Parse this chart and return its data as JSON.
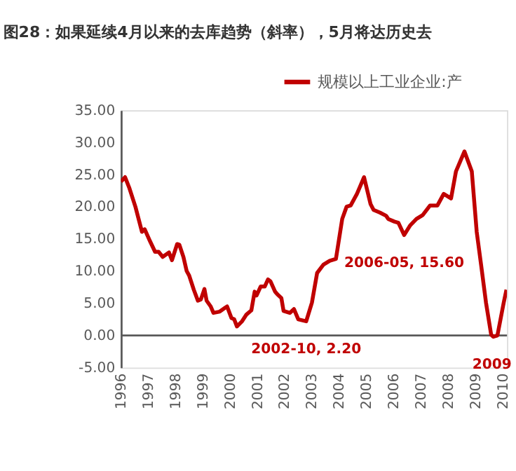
{
  "chart_data": {
    "type": "line",
    "title": "图28：如果延续4月以来的去库趋势（斜率），5月将达历史去",
    "x": [
      1996.0,
      1996.15,
      1996.3,
      1996.53,
      1996.77,
      1996.87,
      1997.07,
      1997.25,
      1997.38,
      1997.53,
      1997.76,
      1997.87,
      1998.06,
      1998.14,
      1998.29,
      1998.41,
      1998.5,
      1998.67,
      1998.82,
      1998.93,
      1999.06,
      1999.14,
      1999.29,
      1999.39,
      1999.62,
      1999.82,
      1999.89,
      2000.05,
      2000.15,
      2000.25,
      2000.44,
      2000.59,
      2000.78,
      2000.9,
      2000.97,
      2001.12,
      2001.27,
      2001.39,
      2001.48,
      2001.65,
      2001.73,
      2001.88,
      2001.96,
      2002.19,
      2002.34,
      2002.5,
      2002.79,
      2003.0,
      2003.19,
      2003.42,
      2003.65,
      2003.88,
      2004.11,
      2004.27,
      2004.42,
      2004.65,
      2004.91,
      2005.15,
      2005.26,
      2005.49,
      2005.72,
      2005.8,
      2006.02,
      2006.17,
      2006.38,
      2006.6,
      2006.83,
      2007.06,
      2007.33,
      2007.6,
      2007.83,
      2008.1,
      2008.28,
      2008.59,
      2008.86,
      2009.04,
      2009.2,
      2009.38,
      2009.57,
      2009.65,
      2009.8,
      2010.03,
      2010.13
    ],
    "series": [
      {
        "name": "规模以上工业企业:产",
        "color": "#c00000",
        "values": [
          23.9,
          24.6,
          23.0,
          20.0,
          16.1,
          16.5,
          14.6,
          13.0,
          13.0,
          12.2,
          12.9,
          11.7,
          14.2,
          14.1,
          12.2,
          10.0,
          9.3,
          7.1,
          5.4,
          5.6,
          7.2,
          5.4,
          4.5,
          3.5,
          3.7,
          4.3,
          4.5,
          2.7,
          2.5,
          1.4,
          2.2,
          3.2,
          3.9,
          6.8,
          6.2,
          7.6,
          7.6,
          8.7,
          8.4,
          6.8,
          6.4,
          5.8,
          3.8,
          3.5,
          4.1,
          2.5,
          2.2,
          5.1,
          9.7,
          11.0,
          11.6,
          11.9,
          18.1,
          20.0,
          20.2,
          22.0,
          24.6,
          20.4,
          19.5,
          19.1,
          18.6,
          18.1,
          17.7,
          17.5,
          15.6,
          17.1,
          18.1,
          18.7,
          20.2,
          20.2,
          22.0,
          21.3,
          25.5,
          28.6,
          25.5,
          16.1,
          11.0,
          5.1,
          0.1,
          -0.2,
          0.0,
          5.1,
          7.1
        ]
      }
    ],
    "xlim": [
      1996,
      2010.15
    ],
    "xticks": [
      1996,
      1997,
      1998,
      1999,
      2000,
      2001,
      2002,
      2003,
      2004,
      2005,
      2006,
      2007,
      2008,
      2009,
      2010
    ],
    "ylim": [
      -5,
      35
    ],
    "yticks": [
      {
        "value": -5,
        "label": "-5.00"
      },
      {
        "value": 0,
        "label": "0.00"
      },
      {
        "value": 5,
        "label": "5.00"
      },
      {
        "value": 10,
        "label": "10.00"
      },
      {
        "value": 15,
        "label": "15.00"
      },
      {
        "value": 20,
        "label": "20.00"
      },
      {
        "value": 25,
        "label": "25.00"
      },
      {
        "value": 30,
        "label": "30.00"
      },
      {
        "value": 35,
        "label": "35.00"
      }
    ],
    "ref_lines": [
      {
        "axis": "y",
        "value": 0,
        "color": "#595959"
      }
    ],
    "annotations": [
      {
        "text": "2002-10, 2.20",
        "x": 2002.79,
        "y": 2.2
      },
      {
        "text": "2006-05, 15.60",
        "x": 2006.38,
        "y": 15.6
      },
      {
        "text": "2009",
        "x": 2009.6,
        "y": -0.2
      }
    ],
    "grid": false,
    "legend": "top right",
    "marker": "none",
    "line_style": "solid"
  }
}
